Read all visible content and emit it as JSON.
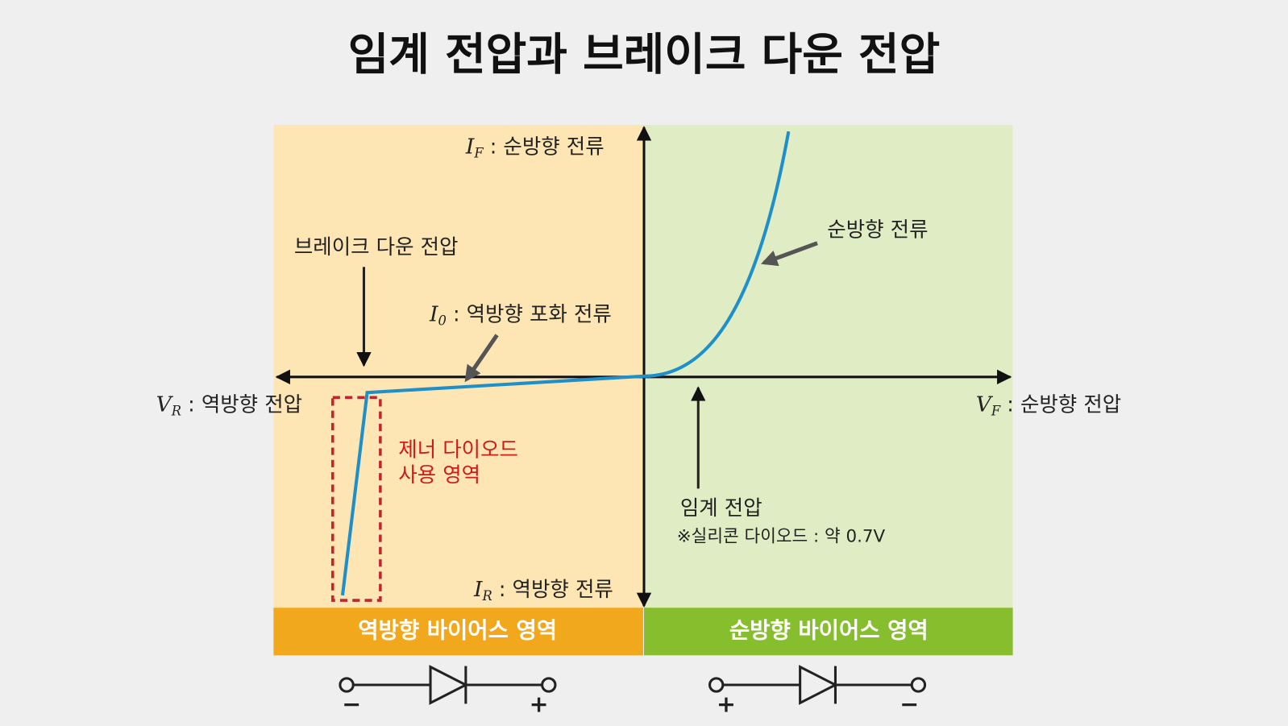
{
  "title": "임계 전압과 브레이크 다운 전압",
  "axes": {
    "forward_current": {
      "symbol": "I",
      "sub": "F",
      "text": " : 순방향 전류"
    },
    "reverse_voltage": {
      "symbol": "V",
      "sub": "R",
      "text": " : 역방향 전압"
    },
    "forward_voltage": {
      "symbol": "V",
      "sub": "F",
      "text": " : 순방향 전압"
    },
    "reverse_current": {
      "symbol": "I",
      "sub": "R",
      "text": " : 역방향 전류"
    }
  },
  "annotations": {
    "breakdown": "브레이크 다운 전압",
    "saturation": {
      "symbol": "I",
      "sub": "0",
      "text": " : 역방향 포화 전류"
    },
    "forward": "순방향 전류",
    "zener": [
      "제너 다이오드",
      "사용 영역"
    ],
    "threshold": "임계 전압",
    "threshold_note": "※실리콘 다이오드 : 약 0.7V"
  },
  "regions": [
    "역방향 바이어스 영역",
    "순방향 바이어스 영역"
  ],
  "terminals": {
    "reverse": [
      "−",
      "+"
    ],
    "forward": [
      "+",
      "−"
    ]
  }
}
